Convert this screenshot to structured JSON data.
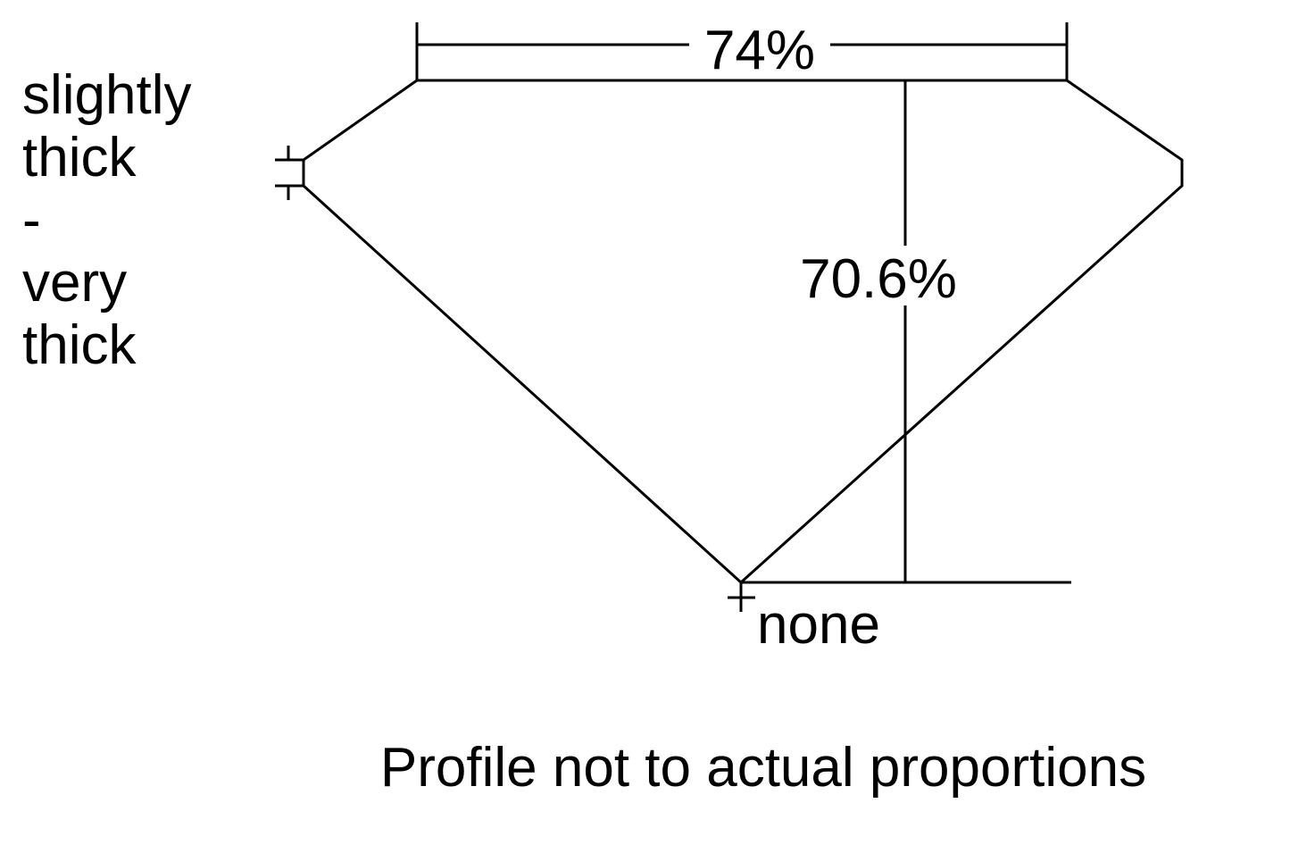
{
  "girdle_label": [
    "slightly",
    "thick",
    "-",
    "very",
    "thick"
  ],
  "table_percent": "74%",
  "depth_percent": "70.6%",
  "culet_label": "none",
  "caption": "Profile not to actual proportions",
  "colors": {
    "line": "#000000",
    "background": "#ffffff"
  }
}
